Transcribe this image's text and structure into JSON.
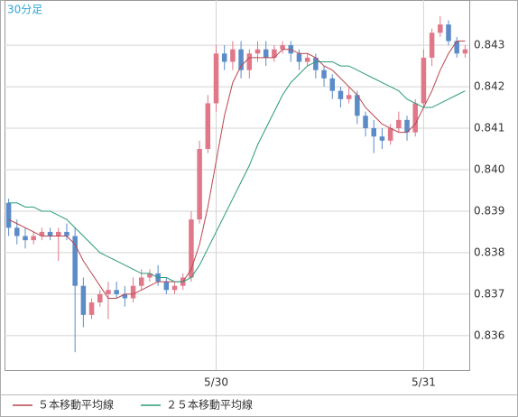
{
  "chart_data": {
    "type": "candlestick",
    "title": "30分足",
    "categories": [
      null,
      null,
      null,
      null,
      null,
      null,
      null,
      null,
      null,
      null,
      null,
      null,
      null,
      null,
      null,
      null,
      null,
      null,
      null,
      null,
      null,
      null,
      null,
      null,
      null,
      "5/30",
      null,
      null,
      null,
      null,
      null,
      null,
      null,
      null,
      null,
      null,
      null,
      null,
      null,
      null,
      null,
      null,
      null,
      null,
      null,
      null,
      null,
      null,
      null,
      null,
      "5/31",
      null,
      null,
      null,
      null,
      null
    ],
    "ohlc": {
      "open": [
        0.8392,
        0.8386,
        0.8384,
        0.8383,
        0.8384,
        0.8385,
        0.8384,
        0.8385,
        0.8384,
        0.8372,
        0.8365,
        0.8368,
        0.837,
        0.8371,
        0.837,
        0.8369,
        0.8372,
        0.8374,
        0.8375,
        0.8373,
        0.8371,
        0.8372,
        0.8374,
        0.8388,
        0.8405,
        0.8416,
        0.8428,
        0.8426,
        0.8429,
        0.8424,
        0.8428,
        0.8429,
        0.8427,
        0.8429,
        0.843,
        0.8428,
        0.8426,
        0.8427,
        0.8424,
        0.8422,
        0.8419,
        0.8417,
        0.8418,
        0.8413,
        0.841,
        0.8408,
        0.8407,
        0.841,
        0.8412,
        0.8409,
        0.8416,
        0.8427,
        0.8433,
        0.8435,
        0.8431,
        0.8428
      ],
      "high": [
        0.8393,
        0.8388,
        0.8386,
        0.8385,
        0.8386,
        0.8386,
        0.8386,
        0.8387,
        0.8386,
        0.8374,
        0.8369,
        0.8371,
        0.8373,
        0.8373,
        0.8372,
        0.8374,
        0.8376,
        0.8376,
        0.8377,
        0.8374,
        0.8373,
        0.8375,
        0.839,
        0.8407,
        0.8418,
        0.843,
        0.843,
        0.8431,
        0.8431,
        0.8429,
        0.8431,
        0.8431,
        0.843,
        0.8431,
        0.8431,
        0.8429,
        0.8428,
        0.8428,
        0.8425,
        0.8423,
        0.842,
        0.842,
        0.8419,
        0.8414,
        0.8412,
        0.841,
        0.8411,
        0.8414,
        0.8413,
        0.8417,
        0.8429,
        0.8434,
        0.8437,
        0.8436,
        0.8432,
        0.843
      ],
      "low": [
        0.8384,
        0.8382,
        0.8381,
        0.8382,
        0.8383,
        0.8383,
        0.8378,
        0.8383,
        0.8356,
        0.8362,
        0.8364,
        0.8367,
        0.8364,
        0.8369,
        0.8367,
        0.8368,
        0.8371,
        0.8373,
        0.8372,
        0.837,
        0.837,
        0.8371,
        0.8373,
        0.8387,
        0.8404,
        0.8414,
        0.8424,
        0.8424,
        0.8422,
        0.8422,
        0.8426,
        0.8425,
        0.8426,
        0.8428,
        0.8426,
        0.8424,
        0.8425,
        0.8422,
        0.842,
        0.8417,
        0.8415,
        0.8416,
        0.8411,
        0.8408,
        0.8404,
        0.8405,
        0.8406,
        0.8409,
        0.8407,
        0.8408,
        0.8415,
        0.8425,
        0.8432,
        0.843,
        0.8427,
        0.8427
      ],
      "close": [
        0.8386,
        0.8384,
        0.8383,
        0.8384,
        0.8385,
        0.8384,
        0.8385,
        0.8384,
        0.8372,
        0.8365,
        0.8368,
        0.837,
        0.8371,
        0.837,
        0.8369,
        0.8372,
        0.8374,
        0.8375,
        0.8373,
        0.8371,
        0.8372,
        0.8374,
        0.8388,
        0.8405,
        0.8416,
        0.8428,
        0.8426,
        0.8429,
        0.8424,
        0.8428,
        0.8429,
        0.8427,
        0.8429,
        0.843,
        0.8428,
        0.8426,
        0.8427,
        0.8424,
        0.8422,
        0.8419,
        0.8417,
        0.8418,
        0.8413,
        0.841,
        0.8408,
        0.8407,
        0.841,
        0.8412,
        0.8409,
        0.8416,
        0.8427,
        0.8433,
        0.8435,
        0.8431,
        0.8428,
        0.8429
      ]
    },
    "up_color": "#e0788a",
    "down_color": "#5b8cc8",
    "series": [
      {
        "name": "５本移動平均線",
        "color": "#b8474f",
        "values": [
          0.8388,
          0.8387,
          0.8386,
          0.8385,
          0.8384,
          0.8384,
          0.8384,
          0.8384,
          0.8382,
          0.8378,
          0.8375,
          0.8372,
          0.8369,
          0.8369,
          0.837,
          0.837,
          0.8371,
          0.8372,
          0.8373,
          0.8373,
          0.8373,
          0.8373,
          0.8376,
          0.8382,
          0.8391,
          0.8402,
          0.8413,
          0.8421,
          0.8425,
          0.8427,
          0.8427,
          0.8427,
          0.8427,
          0.8429,
          0.8429,
          0.8428,
          0.8428,
          0.8427,
          0.8425,
          0.8424,
          0.8422,
          0.842,
          0.8418,
          0.8415,
          0.8413,
          0.8411,
          0.841,
          0.8409,
          0.8409,
          0.8411,
          0.8415,
          0.8419,
          0.8424,
          0.8428,
          0.8431,
          0.8431
        ]
      },
      {
        "name": "２５本移動平均線",
        "color": "#2a9a78",
        "values": [
          0.8392,
          0.8392,
          0.8391,
          0.8391,
          0.839,
          0.839,
          0.8389,
          0.8388,
          0.8386,
          0.8384,
          0.8382,
          0.838,
          0.8379,
          0.8378,
          0.8377,
          0.8376,
          0.8375,
          0.8375,
          0.8374,
          0.8374,
          0.8373,
          0.8373,
          0.8374,
          0.8377,
          0.8381,
          0.8385,
          0.8389,
          0.8393,
          0.8397,
          0.8401,
          0.8406,
          0.841,
          0.8414,
          0.8418,
          0.8421,
          0.8423,
          0.8425,
          0.8426,
          0.8426,
          0.8426,
          0.8425,
          0.8425,
          0.8424,
          0.8423,
          0.8422,
          0.8421,
          0.842,
          0.8419,
          0.8417,
          0.8416,
          0.8415,
          0.8415,
          0.8416,
          0.8417,
          0.8418,
          0.8419
        ]
      }
    ],
    "ylim": [
      0.83517,
      0.84409
    ],
    "yticks": [
      0.836,
      0.837,
      0.838,
      0.839,
      {
        "value": 0.84,
        "label": "0.840"
      },
      0.841,
      0.842,
      0.843
    ],
    "grid": true
  }
}
